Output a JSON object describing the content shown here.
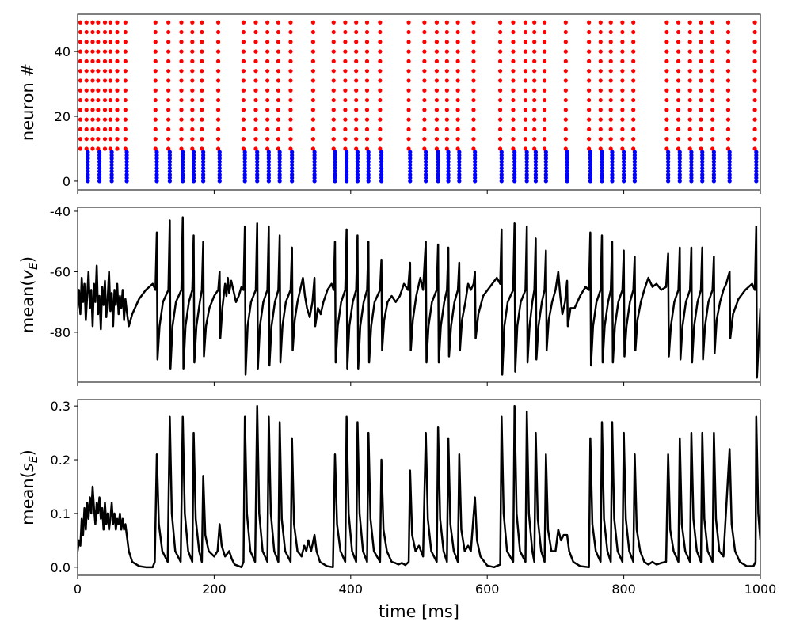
{
  "chart_data": [
    {
      "type": "raster",
      "ylabel": "neuron #",
      "xlim": [
        0,
        1000
      ],
      "xticks": [
        0,
        200,
        400,
        600,
        800,
        1000
      ],
      "show_xtick_labels": false,
      "ylim": [
        -2.7,
        51.5
      ],
      "yticks": [
        0,
        20,
        40
      ],
      "series": [
        {
          "color": "#ff0000",
          "x": [
            4,
            13,
            22,
            30,
            40,
            48,
            58,
            70,
            114,
            133,
            152,
            168,
            182,
            206,
            243,
            261,
            278,
            294,
            312,
            345,
            375,
            392,
            408,
            424,
            443,
            485,
            508,
            526,
            541,
            557,
            580,
            619,
            638,
            656,
            669,
            684,
            715,
            749,
            766,
            781,
            798,
            814,
            863,
            880,
            897,
            913,
            930,
            953,
            992
          ],
          "neurons": [
            10,
            13,
            16,
            19,
            22,
            25,
            28,
            31,
            34,
            37,
            40,
            43,
            46,
            49
          ]
        },
        {
          "color": "#0000ff",
          "x": [
            15,
            32,
            50,
            72,
            116,
            135,
            154,
            170,
            184,
            208,
            245,
            263,
            280,
            296,
            314,
            347,
            377,
            394,
            410,
            426,
            445,
            487,
            510,
            528,
            543,
            559,
            582,
            621,
            640,
            658,
            671,
            686,
            717,
            751,
            768,
            783,
            800,
            816,
            865,
            882,
            899,
            915,
            932,
            955,
            994
          ],
          "neurons": [
            0,
            1,
            2,
            3,
            4,
            5,
            6,
            7,
            8,
            9
          ]
        }
      ]
    },
    {
      "type": "line",
      "ylabel_parts": [
        "mean(",
        "v",
        "E",
        ")"
      ],
      "color": "#000000",
      "xlim": [
        0,
        1000
      ],
      "xticks": [
        0,
        200,
        400,
        600,
        800,
        1000
      ],
      "show_xtick_labels": false,
      "ylim": [
        -96.5,
        -38.7
      ],
      "yticks": [
        -80,
        -60,
        -40
      ],
      "x": [
        0,
        2,
        4,
        6,
        8,
        10,
        12,
        14,
        16,
        18,
        20,
        22,
        24,
        26,
        28,
        30,
        32,
        34,
        36,
        38,
        40,
        42,
        44,
        46,
        48,
        50,
        52,
        54,
        56,
        58,
        60,
        62,
        64,
        66,
        68,
        70,
        72,
        75,
        80,
        90,
        100,
        110,
        114,
        116,
        117,
        120,
        125,
        133,
        135,
        136,
        139,
        144,
        152,
        154,
        155,
        158,
        163,
        168,
        170,
        171,
        174,
        179,
        182,
        184,
        185,
        188,
        193,
        200,
        206,
        208,
        209,
        212,
        216,
        218,
        220,
        222,
        225,
        228,
        232,
        236,
        240,
        243,
        245,
        246,
        249,
        254,
        261,
        263,
        264,
        267,
        272,
        278,
        280,
        281,
        284,
        289,
        294,
        296,
        297,
        300,
        305,
        312,
        314,
        315,
        318,
        322,
        326,
        330,
        333,
        336,
        340,
        344,
        347,
        348,
        352,
        356,
        360,
        366,
        372,
        375,
        377,
        378,
        381,
        386,
        392,
        394,
        395,
        398,
        403,
        408,
        410,
        411,
        414,
        419,
        424,
        426,
        427,
        430,
        435,
        443,
        445,
        446,
        449,
        454,
        460,
        466,
        472,
        478,
        484,
        487,
        488,
        491,
        496,
        502,
        506,
        508,
        510,
        511,
        514,
        519,
        526,
        528,
        529,
        532,
        537,
        541,
        543,
        544,
        547,
        552,
        557,
        559,
        560,
        563,
        568,
        572,
        576,
        580,
        582,
        583,
        587,
        594,
        604,
        614,
        619,
        621,
        622,
        625,
        630,
        638,
        640,
        641,
        644,
        649,
        656,
        658,
        659,
        662,
        666,
        669,
        671,
        672,
        675,
        680,
        684,
        686,
        687,
        690,
        695,
        700,
        704,
        707,
        710,
        714,
        717,
        718,
        722,
        728,
        736,
        744,
        749,
        751,
        752,
        755,
        760,
        766,
        768,
        769,
        772,
        777,
        781,
        783,
        784,
        787,
        792,
        798,
        800,
        801,
        804,
        809,
        814,
        816,
        817,
        820,
        825,
        830,
        836,
        842,
        848,
        855,
        862,
        865,
        866,
        869,
        874,
        880,
        882,
        883,
        886,
        891,
        897,
        899,
        900,
        903,
        908,
        913,
        915,
        916,
        919,
        924,
        930,
        932,
        933,
        936,
        941,
        946,
        950,
        955,
        956,
        960,
        968,
        978,
        988,
        992,
        994,
        995,
        1000
      ],
      "values": [
        -72,
        -66,
        -74,
        -62,
        -70,
        -64,
        -76,
        -68,
        -60,
        -72,
        -66,
        -78,
        -64,
        -70,
        -58,
        -74,
        -68,
        -79,
        -65,
        -71,
        -63,
        -75,
        -69,
        -60,
        -73,
        -67,
        -78,
        -66,
        -71,
        -64,
        -74,
        -68,
        -72,
        -66,
        -76,
        -69,
        -73,
        -78,
        -74,
        -69,
        -66,
        -64,
        -66,
        -47,
        -89,
        -78,
        -70,
        -66,
        -43,
        -92,
        -78,
        -70,
        -66,
        -42,
        -92,
        -78,
        -70,
        -66,
        -48,
        -90,
        -78,
        -70,
        -66,
        -50,
        -88,
        -78,
        -72,
        -68,
        -66,
        -60,
        -82,
        -72,
        -64,
        -68,
        -62,
        -67,
        -63,
        -66,
        -70,
        -68,
        -65,
        -66,
        -45,
        -94,
        -78,
        -70,
        -66,
        -44,
        -92,
        -78,
        -70,
        -66,
        -45,
        -91,
        -78,
        -70,
        -66,
        -48,
        -90,
        -78,
        -70,
        -66,
        -52,
        -86,
        -76,
        -70,
        -66,
        -62,
        -68,
        -72,
        -75,
        -70,
        -62,
        -78,
        -72,
        -74,
        -70,
        -66,
        -64,
        -66,
        -50,
        -90,
        -78,
        -70,
        -66,
        -46,
        -92,
        -78,
        -70,
        -66,
        -48,
        -92,
        -78,
        -70,
        -66,
        -50,
        -90,
        -78,
        -70,
        -66,
        -56,
        -86,
        -76,
        -70,
        -68,
        -70,
        -68,
        -64,
        -66,
        -57,
        -86,
        -76,
        -68,
        -62,
        -66,
        -58,
        -50,
        -90,
        -78,
        -70,
        -66,
        -51,
        -90,
        -78,
        -70,
        -66,
        -52,
        -88,
        -78,
        -70,
        -66,
        -57,
        -86,
        -76,
        -70,
        -64,
        -66,
        -64,
        -60,
        -82,
        -74,
        -68,
        -65,
        -62,
        -64,
        -46,
        -94,
        -78,
        -70,
        -66,
        -44,
        -93,
        -78,
        -70,
        -66,
        -45,
        -90,
        -78,
        -70,
        -66,
        -49,
        -89,
        -78,
        -70,
        -66,
        -53,
        -86,
        -76,
        -70,
        -66,
        -60,
        -68,
        -74,
        -70,
        -63,
        -78,
        -72,
        -72,
        -68,
        -65,
        -66,
        -47,
        -91,
        -78,
        -70,
        -66,
        -48,
        -90,
        -78,
        -70,
        -66,
        -50,
        -90,
        -78,
        -70,
        -66,
        -53,
        -88,
        -78,
        -70,
        -66,
        -55,
        -86,
        -76,
        -70,
        -66,
        -62,
        -65,
        -64,
        -66,
        -65,
        -54,
        -88,
        -78,
        -70,
        -66,
        -52,
        -89,
        -78,
        -70,
        -66,
        -52,
        -90,
        -78,
        -70,
        -66,
        -52,
        -89,
        -78,
        -70,
        -66,
        -55,
        -87,
        -76,
        -70,
        -66,
        -64,
        -60,
        -82,
        -74,
        -69,
        -66,
        -64,
        -66,
        -45,
        -95,
        -72
      ]
    },
    {
      "type": "line",
      "ylabel_parts": [
        "mean(",
        "s",
        "E",
        ")"
      ],
      "xlabel": "time [ms]",
      "color": "#000000",
      "xlim": [
        0,
        1000
      ],
      "xticks": [
        0,
        200,
        400,
        600,
        800,
        1000
      ],
      "show_xtick_labels": true,
      "ylim": [
        -0.015,
        0.312
      ],
      "yticks": [
        {
          "value": 0,
          "label": "0.0"
        },
        0.1,
        0.2,
        0.3
      ],
      "x": [
        0,
        2,
        4,
        6,
        8,
        10,
        12,
        14,
        16,
        18,
        20,
        22,
        24,
        26,
        28,
        30,
        32,
        34,
        36,
        38,
        40,
        42,
        44,
        46,
        48,
        50,
        52,
        54,
        56,
        58,
        60,
        62,
        64,
        66,
        68,
        70,
        72,
        75,
        80,
        90,
        100,
        110,
        113,
        116,
        119,
        124,
        132,
        135,
        138,
        143,
        151,
        154,
        157,
        162,
        168,
        170,
        173,
        178,
        182,
        184,
        187,
        192,
        200,
        205,
        208,
        211,
        216,
        222,
        226,
        230,
        240,
        243,
        245,
        248,
        253,
        260,
        263,
        266,
        271,
        278,
        280,
        283,
        288,
        294,
        296,
        299,
        304,
        312,
        314,
        317,
        322,
        328,
        332,
        335,
        338,
        342,
        347,
        350,
        355,
        365,
        374,
        377,
        380,
        385,
        392,
        394,
        397,
        402,
        408,
        410,
        413,
        418,
        424,
        426,
        429,
        434,
        443,
        445,
        448,
        453,
        460,
        465,
        470,
        475,
        480,
        485,
        487,
        490,
        495,
        500,
        506,
        510,
        513,
        518,
        526,
        528,
        531,
        536,
        541,
        543,
        546,
        551,
        557,
        559,
        562,
        567,
        572,
        576,
        582,
        585,
        590,
        600,
        610,
        619,
        621,
        624,
        629,
        638,
        640,
        643,
        648,
        656,
        658,
        661,
        666,
        669,
        671,
        674,
        679,
        684,
        686,
        689,
        694,
        700,
        704,
        708,
        712,
        717,
        720,
        726,
        736,
        749,
        751,
        754,
        759,
        766,
        768,
        771,
        776,
        781,
        783,
        786,
        791,
        798,
        800,
        803,
        808,
        814,
        816,
        819,
        824,
        830,
        836,
        842,
        848,
        855,
        862,
        865,
        868,
        873,
        880,
        882,
        885,
        890,
        897,
        899,
        902,
        907,
        913,
        915,
        918,
        923,
        930,
        932,
        935,
        940,
        946,
        955,
        958,
        963,
        970,
        980,
        990,
        993,
        994,
        997,
        1000
      ],
      "values": [
        0.03,
        0.05,
        0.04,
        0.09,
        0.06,
        0.11,
        0.07,
        0.12,
        0.09,
        0.13,
        0.1,
        0.15,
        0.11,
        0.08,
        0.12,
        0.1,
        0.13,
        0.09,
        0.11,
        0.07,
        0.12,
        0.08,
        0.1,
        0.07,
        0.09,
        0.12,
        0.08,
        0.1,
        0.07,
        0.09,
        0.08,
        0.1,
        0.07,
        0.09,
        0.07,
        0.08,
        0.06,
        0.03,
        0.01,
        0.002,
        0,
        0,
        0.01,
        0.21,
        0.08,
        0.03,
        0.01,
        0.28,
        0.1,
        0.03,
        0.01,
        0.28,
        0.1,
        0.03,
        0.01,
        0.25,
        0.09,
        0.03,
        0.01,
        0.17,
        0.06,
        0.03,
        0.02,
        0.03,
        0.08,
        0.04,
        0.02,
        0.03,
        0.015,
        0.005,
        0,
        0.01,
        0.28,
        0.1,
        0.03,
        0.01,
        0.3,
        0.1,
        0.03,
        0.01,
        0.28,
        0.1,
        0.03,
        0.01,
        0.27,
        0.09,
        0.03,
        0.01,
        0.24,
        0.08,
        0.03,
        0.02,
        0.04,
        0.03,
        0.05,
        0.03,
        0.06,
        0.03,
        0.01,
        0.002,
        0,
        0.21,
        0.08,
        0.03,
        0.01,
        0.28,
        0.1,
        0.03,
        0.01,
        0.27,
        0.1,
        0.03,
        0.01,
        0.25,
        0.09,
        0.03,
        0.01,
        0.2,
        0.07,
        0.03,
        0.01,
        0.008,
        0.005,
        0.008,
        0.004,
        0.01,
        0.18,
        0.06,
        0.03,
        0.04,
        0.02,
        0.25,
        0.09,
        0.03,
        0.01,
        0.26,
        0.09,
        0.03,
        0.01,
        0.24,
        0.08,
        0.03,
        0.01,
        0.21,
        0.07,
        0.03,
        0.04,
        0.03,
        0.13,
        0.05,
        0.02,
        0.003,
        0,
        0.005,
        0.28,
        0.1,
        0.03,
        0.01,
        0.3,
        0.1,
        0.03,
        0.01,
        0.29,
        0.1,
        0.03,
        0.01,
        0.25,
        0.09,
        0.03,
        0.01,
        0.21,
        0.07,
        0.03,
        0.03,
        0.07,
        0.05,
        0.06,
        0.06,
        0.03,
        0.01,
        0.002,
        0,
        0.24,
        0.08,
        0.03,
        0.01,
        0.27,
        0.09,
        0.03,
        0.01,
        0.27,
        0.09,
        0.03,
        0.01,
        0.25,
        0.09,
        0.03,
        0.01,
        0.21,
        0.07,
        0.03,
        0.01,
        0.005,
        0.01,
        0.005,
        0.008,
        0.01,
        0.21,
        0.07,
        0.03,
        0.01,
        0.24,
        0.08,
        0.03,
        0.01,
        0.25,
        0.09,
        0.03,
        0.01,
        0.25,
        0.09,
        0.03,
        0.01,
        0.25,
        0.09,
        0.03,
        0.02,
        0.22,
        0.08,
        0.03,
        0.01,
        0.002,
        0.002,
        0.01,
        0.28,
        0.1,
        0.05
      ]
    }
  ]
}
